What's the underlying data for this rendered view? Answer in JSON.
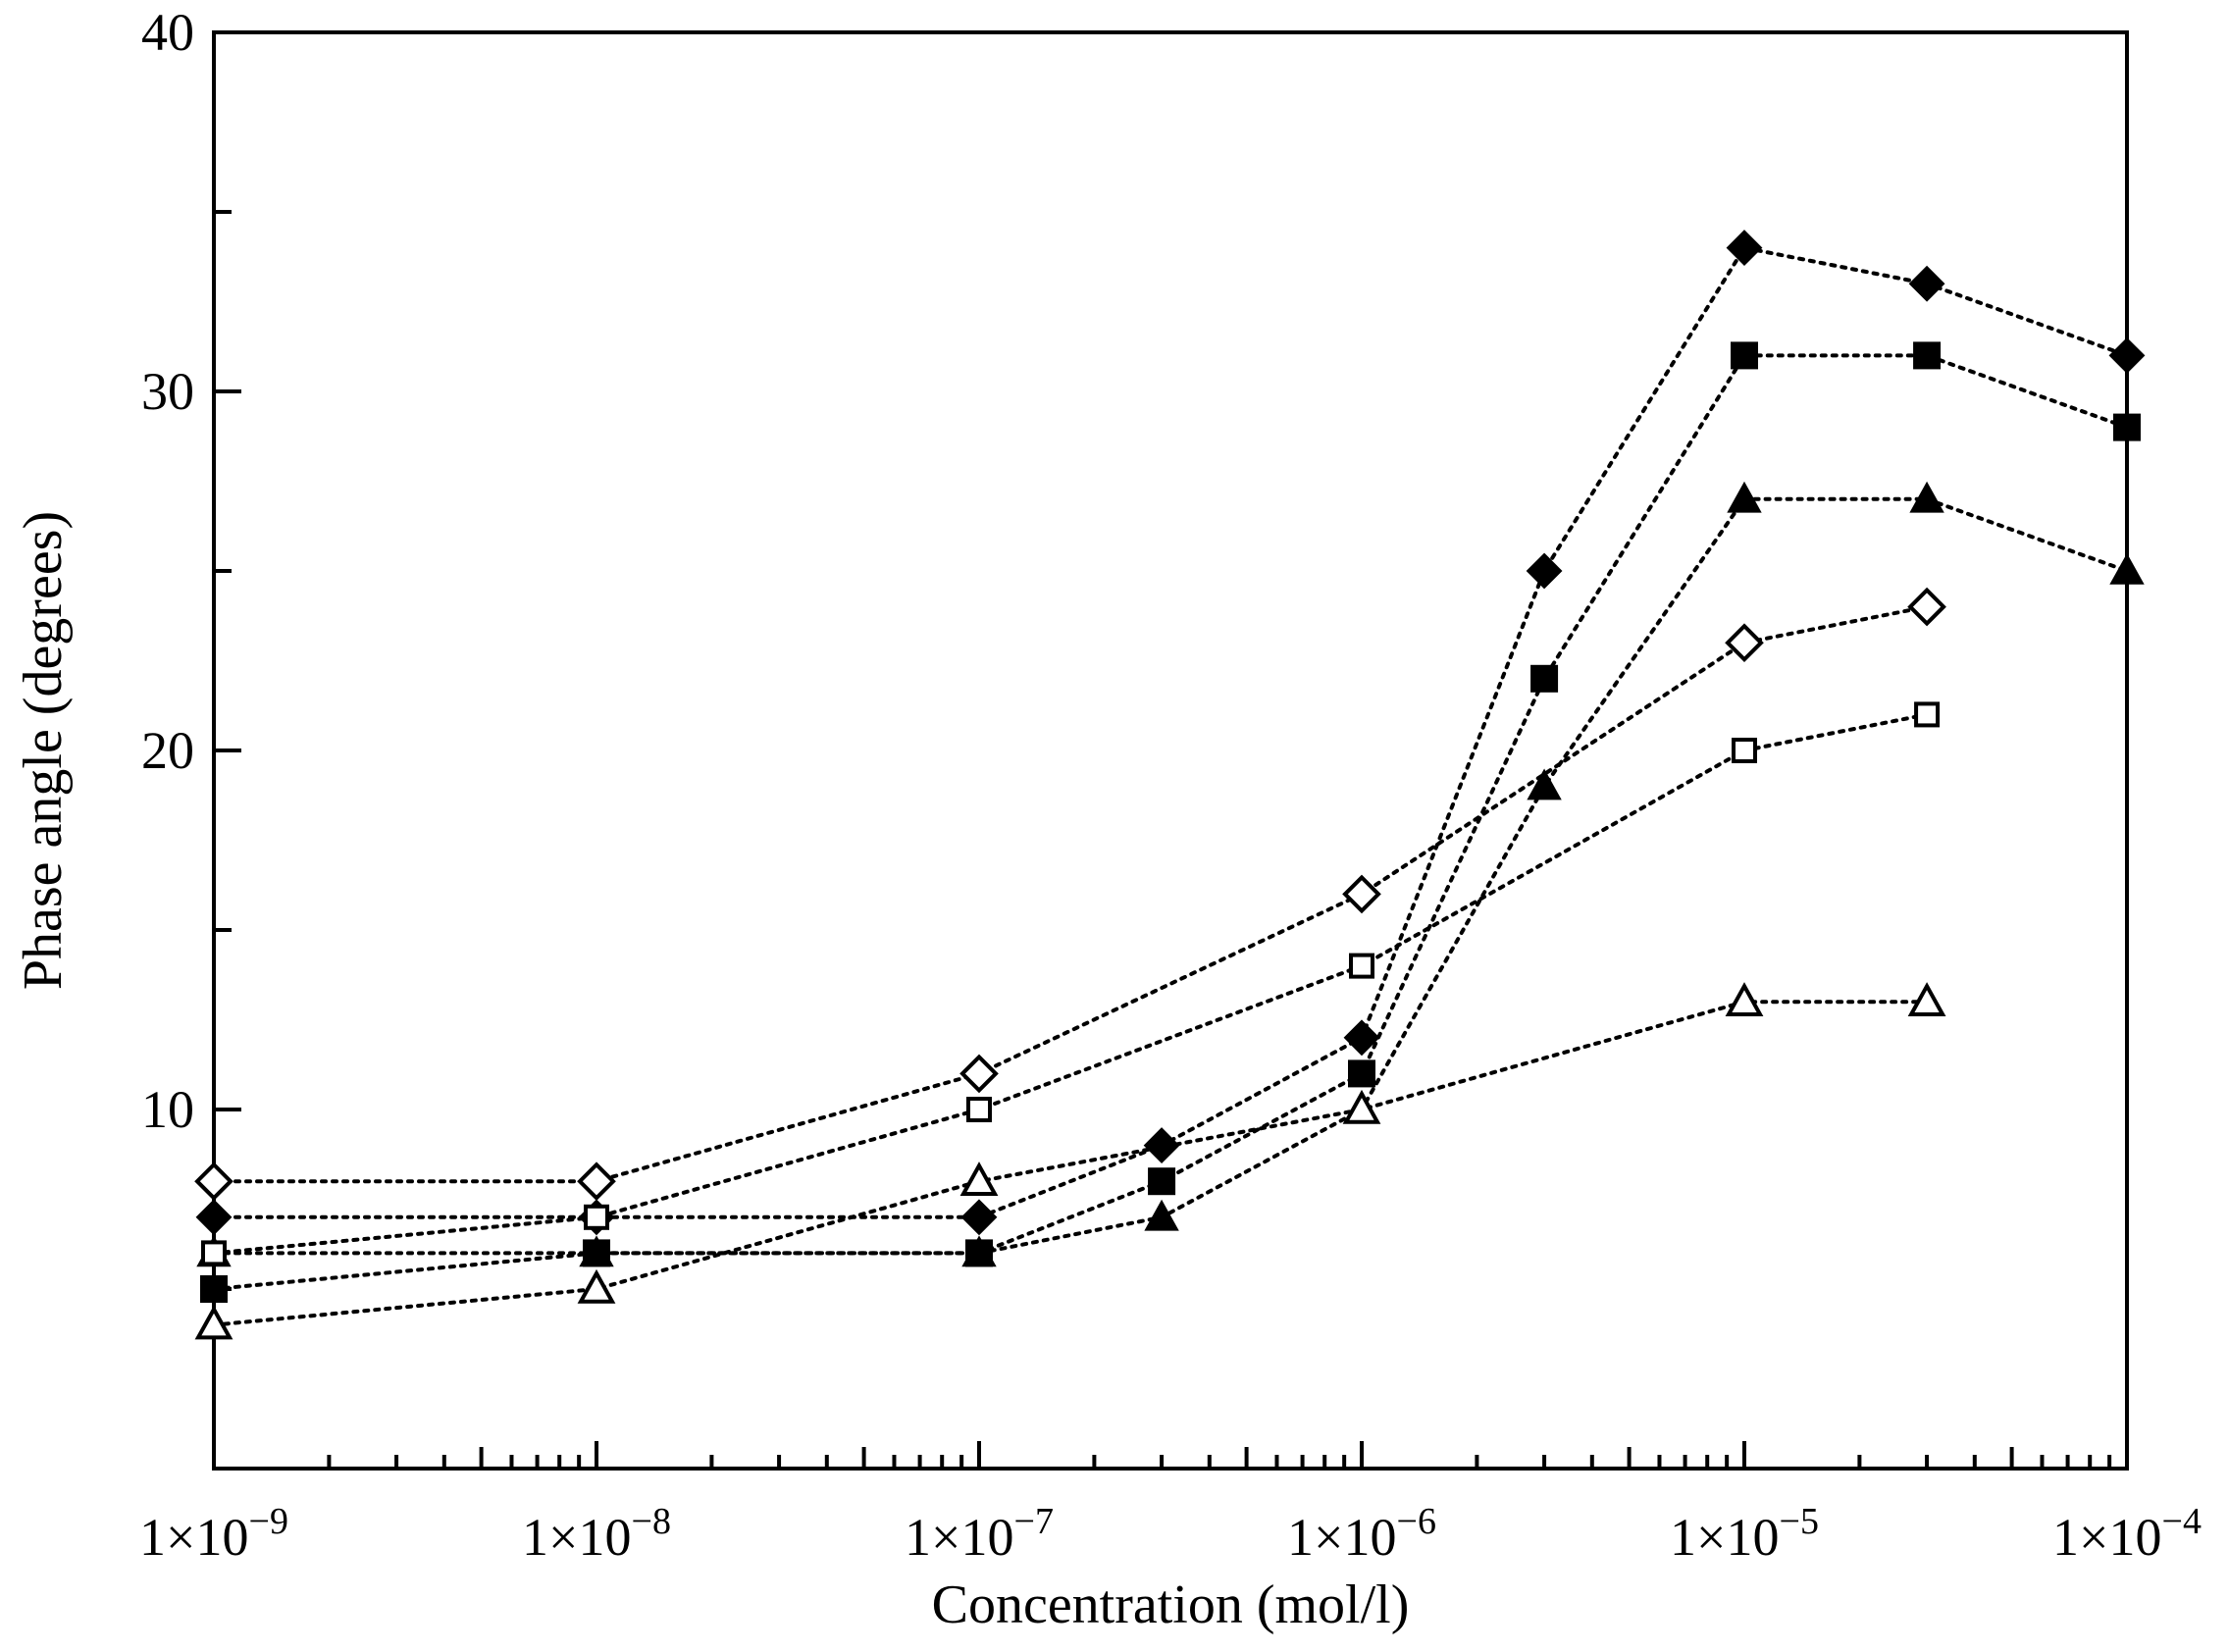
{
  "chart_data": {
    "type": "line",
    "title": "",
    "xlabel": "Concentration (mol/l)",
    "ylabel": "Phase angle (degrees)",
    "xscale": "log",
    "xlim": [
      1e-09,
      0.0001
    ],
    "ylim": [
      0,
      40
    ],
    "grid": false,
    "legend": "none",
    "y_ticks": [
      "10",
      "20",
      "30",
      "40"
    ],
    "x_ticks": [
      {
        "value": 1e-09,
        "base": "1×10",
        "exp": "−9"
      },
      {
        "value": 1e-08,
        "base": "1×10",
        "exp": "−8"
      },
      {
        "value": 1e-07,
        "base": "1×10",
        "exp": "−7"
      },
      {
        "value": 1e-06,
        "base": "1×10",
        "exp": "−6"
      },
      {
        "value": 1e-05,
        "base": "1×10",
        "exp": "−5"
      },
      {
        "value": 0.0001,
        "base": "1×10",
        "exp": "−4"
      }
    ],
    "series": [
      {
        "name": "filled-diamond",
        "marker": "diamond",
        "filled": true,
        "x": [
          1e-09,
          1e-08,
          1e-07,
          3e-07,
          1e-06,
          3e-06,
          1e-05,
          3e-05,
          0.0001
        ],
        "y": [
          7,
          7,
          7,
          9,
          12,
          25,
          34,
          33,
          31
        ]
      },
      {
        "name": "filled-square",
        "marker": "square",
        "filled": true,
        "x": [
          1e-09,
          1e-08,
          1e-07,
          3e-07,
          1e-06,
          3e-06,
          1e-05,
          3e-05,
          0.0001
        ],
        "y": [
          5,
          6,
          6,
          8,
          11,
          22,
          31,
          31,
          29
        ]
      },
      {
        "name": "filled-triangle",
        "marker": "triangle",
        "filled": true,
        "x": [
          1e-09,
          1e-08,
          1e-07,
          3e-07,
          1e-06,
          3e-06,
          1e-05,
          3e-05,
          0.0001
        ],
        "y": [
          6,
          6,
          6,
          7,
          10,
          19,
          27,
          27,
          25
        ]
      },
      {
        "name": "open-diamond",
        "marker": "diamond",
        "filled": false,
        "x": [
          1e-09,
          1e-08,
          1e-07,
          1e-06,
          1e-05,
          3e-05
        ],
        "y": [
          8,
          8,
          11,
          16,
          23,
          24
        ]
      },
      {
        "name": "open-square",
        "marker": "square",
        "filled": false,
        "x": [
          1e-09,
          1e-08,
          1e-07,
          1e-06,
          1e-05,
          3e-05
        ],
        "y": [
          6,
          7,
          10,
          14,
          20,
          21
        ]
      },
      {
        "name": "open-triangle",
        "marker": "triangle",
        "filled": false,
        "x": [
          1e-09,
          1e-08,
          1e-07,
          1e-06,
          1e-05,
          3e-05
        ],
        "y": [
          4,
          5,
          8,
          10,
          13,
          13
        ]
      }
    ]
  }
}
